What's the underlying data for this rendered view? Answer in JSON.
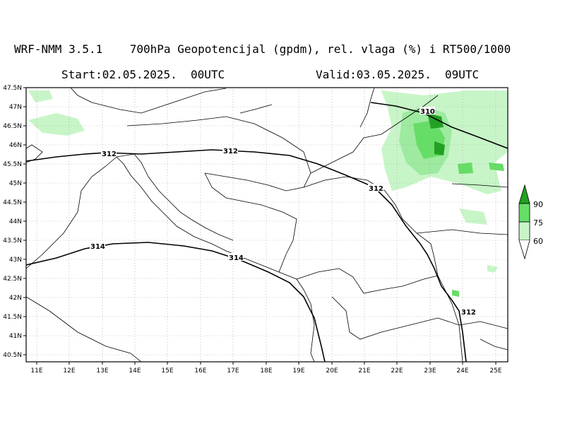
{
  "header": {
    "title": "WRF-NMM 3.5.1    700hPa Geopotencijal (gpdm), rel. vlaga (%) i RT500/1000",
    "start": "Start:02.05.2025.  00UTC",
    "valid": "Valid:03.05.2025.  09UTC"
  },
  "map": {
    "lon_range": [
      10.9,
      25.3
    ],
    "lat_range": [
      40.3,
      47.5
    ],
    "lon_ticks": [
      "11E",
      "12E",
      "13E",
      "14E",
      "15E",
      "16E",
      "17E",
      "18E",
      "19E",
      "20E",
      "21E",
      "22E",
      "23E",
      "24E",
      "25E"
    ],
    "lat_ticks": [
      "47.5N",
      "47N",
      "46.5N",
      "46N",
      "45.5N",
      "45N",
      "44.5N",
      "44N",
      "43.5N",
      "43N",
      "42.5N",
      "42N",
      "41.5N",
      "41N",
      "40.5N"
    ],
    "contour_labels": [
      "312",
      "312",
      "312",
      "310",
      "314",
      "314",
      "312"
    ]
  },
  "legend": {
    "levels": [
      "90",
      "75",
      "60"
    ],
    "colors": [
      "#22a022",
      "#66dd66",
      "#c8f5c8"
    ]
  }
}
